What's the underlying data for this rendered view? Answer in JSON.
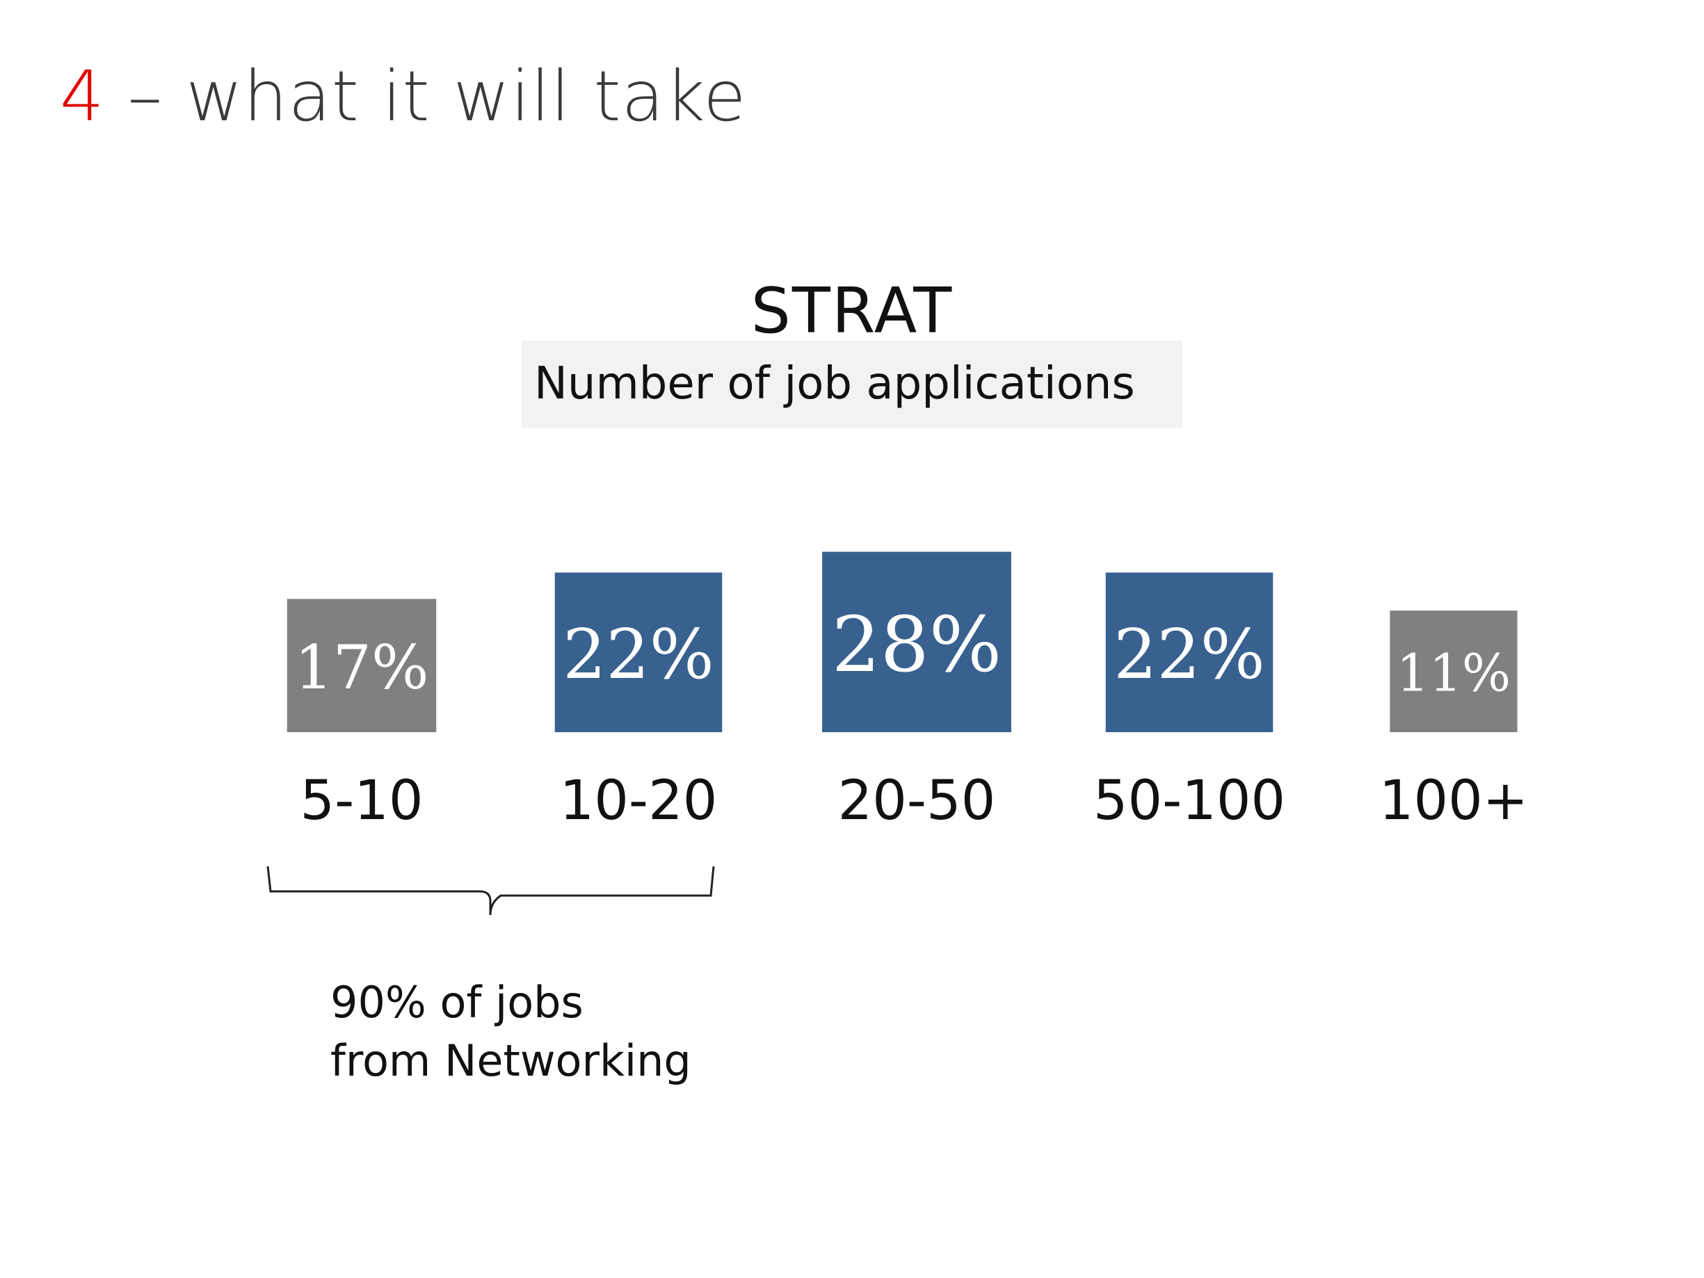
{
  "slide": {
    "number": "4",
    "title": " – what it will take"
  },
  "chart_data": {
    "type": "bar",
    "title": "STRAT",
    "subtitle": "Number of job applications",
    "categories": [
      "5-10",
      "10-20",
      "20-50",
      "50-100",
      "100+"
    ],
    "values": [
      17,
      22,
      28,
      22,
      11
    ],
    "value_labels": [
      "17%",
      "22%",
      "28%",
      "22%",
      "11%"
    ],
    "bar_colors": [
      "#808080",
      "#38618f",
      "#38618f",
      "#38618f",
      "#808080"
    ],
    "grid": false,
    "legend": "none"
  },
  "annotation": {
    "line1": "90% of jobs",
    "line2": "from Networking",
    "bracket_covers": [
      "5-10",
      "10-20"
    ]
  },
  "colors": {
    "accent_red": "#e00000",
    "bar_blue": "#38618f",
    "bar_gray": "#808080"
  }
}
